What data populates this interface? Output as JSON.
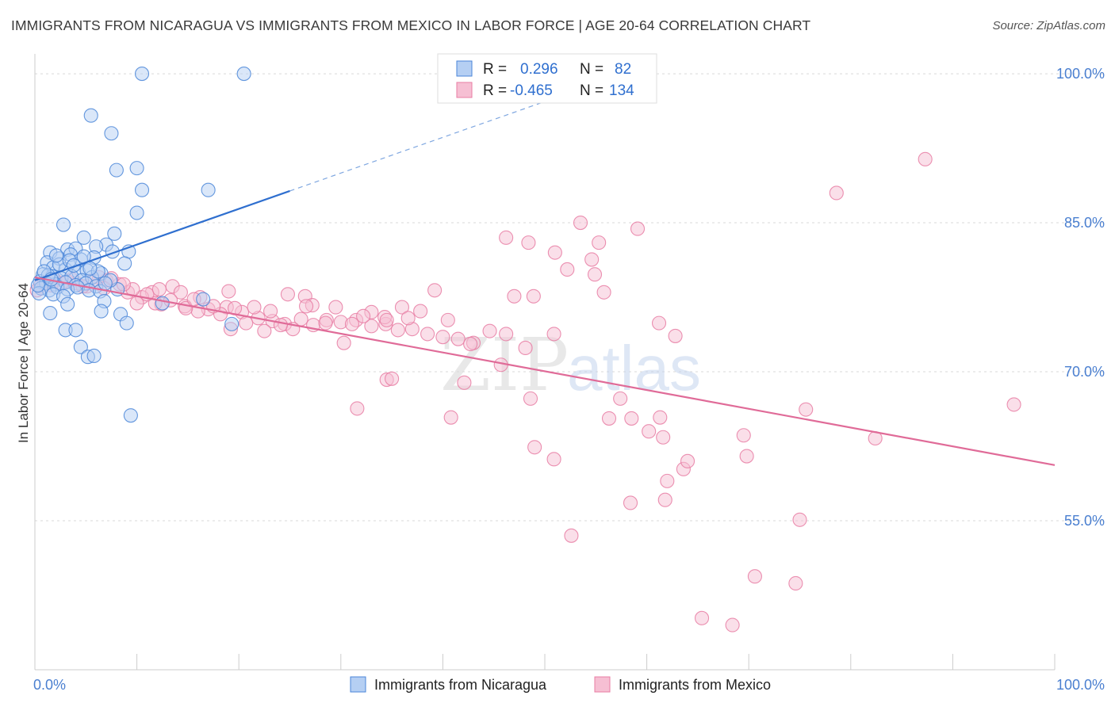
{
  "header": {
    "title": "IMMIGRANTS FROM NICARAGUA VS IMMIGRANTS FROM MEXICO IN LABOR FORCE | AGE 20-64 CORRELATION CHART",
    "source": "Source: ZipAtlas.com"
  },
  "watermark": {
    "zip": "ZIP",
    "atlas": "atlas"
  },
  "chart_data": {
    "type": "scatter",
    "title": "IMMIGRANTS FROM NICARAGUA VS IMMIGRANTS FROM MEXICO IN LABOR FORCE | AGE 20-64 CORRELATION CHART",
    "xlabel": "",
    "ylabel": "In Labor Force | Age 20-64",
    "xlim": [
      0,
      100
    ],
    "ylim": [
      40,
      102
    ],
    "x_tick_labels": {
      "left": "0.0%",
      "right": "100.0%"
    },
    "y_ticks": [
      {
        "value": 100,
        "label": "100.0%"
      },
      {
        "value": 85,
        "label": "85.0%"
      },
      {
        "value": 70,
        "label": "70.0%"
      },
      {
        "value": 55,
        "label": "55.0%"
      }
    ],
    "grid": true,
    "legend_position": "top-center",
    "legend": {
      "rows": [
        {
          "r_label": "R = ",
          "r_value": "0.296",
          "n_label": "N = ",
          "n_value": "82"
        },
        {
          "r_label": "R = ",
          "r_value": "-0.465",
          "n_label": "N = ",
          "n_value": "134"
        }
      ]
    },
    "series": [
      {
        "name": "Immigrants from Nicaragua",
        "color": "#4a86d8",
        "fill": "#b5cff3",
        "trend": {
          "x0": 0,
          "y0": 79.2,
          "x1": 25,
          "y1": 88.2,
          "dashed_to_x": 50,
          "dashed_to_y": 97.2
        },
        "points": [
          [
            10.5,
            100
          ],
          [
            20.5,
            100
          ],
          [
            5.5,
            95.8
          ],
          [
            7.5,
            94
          ],
          [
            8,
            90.3
          ],
          [
            10,
            90.5
          ],
          [
            10.5,
            88.3
          ],
          [
            17,
            88.3
          ],
          [
            10,
            86
          ],
          [
            2.8,
            84.8
          ],
          [
            4.8,
            83.5
          ],
          [
            7.8,
            83.9
          ],
          [
            7,
            82.8
          ],
          [
            6,
            82.6
          ],
          [
            1.5,
            82
          ],
          [
            3.2,
            82.3
          ],
          [
            4,
            82.4
          ],
          [
            5.8,
            81.5
          ],
          [
            1.2,
            81
          ],
          [
            2.4,
            81.4
          ],
          [
            3.5,
            81.8
          ],
          [
            4.5,
            81.3
          ],
          [
            1.8,
            80.5
          ],
          [
            3,
            80.3
          ],
          [
            4.3,
            80
          ],
          [
            5.1,
            80.2
          ],
          [
            6.5,
            79.9
          ],
          [
            0.8,
            79.8
          ],
          [
            1.7,
            79.6
          ],
          [
            2.6,
            79.4
          ],
          [
            3.6,
            79.6
          ],
          [
            4.6,
            79.2
          ],
          [
            5.6,
            79.5
          ],
          [
            0.5,
            79.1
          ],
          [
            1.1,
            78.9
          ],
          [
            2,
            78.8
          ],
          [
            3,
            79
          ],
          [
            4,
            78.7
          ],
          [
            5,
            78.9
          ],
          [
            6,
            78.6
          ],
          [
            0.6,
            78.4
          ],
          [
            1.4,
            78.2
          ],
          [
            2.2,
            78.5
          ],
          [
            3.2,
            78.3
          ],
          [
            4.2,
            78.5
          ],
          [
            5.3,
            78.2
          ],
          [
            6.4,
            78.1
          ],
          [
            0.4,
            77.9
          ],
          [
            1.8,
            77.8
          ],
          [
            2.8,
            77.6
          ],
          [
            6.8,
            77.1
          ],
          [
            3.2,
            76.8
          ],
          [
            1.5,
            75.9
          ],
          [
            6.5,
            76.1
          ],
          [
            8.4,
            75.8
          ],
          [
            9,
            74.9
          ],
          [
            3,
            74.2
          ],
          [
            4,
            74.2
          ],
          [
            4.5,
            72.5
          ],
          [
            5.2,
            71.5
          ],
          [
            5.8,
            71.6
          ],
          [
            9.4,
            65.6
          ],
          [
            16.5,
            77.3
          ],
          [
            12.5,
            76.9
          ],
          [
            19.3,
            74.8
          ],
          [
            8.1,
            78.3
          ],
          [
            7.4,
            79.2
          ],
          [
            6.2,
            80.1
          ],
          [
            1.3,
            79.7
          ],
          [
            2.4,
            80.8
          ],
          [
            7.6,
            82.1
          ],
          [
            5.4,
            80.4
          ],
          [
            3.4,
            81.2
          ],
          [
            4.8,
            81.6
          ],
          [
            6.9,
            78.9
          ],
          [
            0.9,
            80.1
          ],
          [
            1.6,
            79.3
          ],
          [
            2.1,
            81.7
          ],
          [
            3.8,
            80.7
          ],
          [
            0.3,
            78.7
          ],
          [
            9.2,
            82.1
          ],
          [
            8.8,
            80.9
          ]
        ]
      },
      {
        "name": "Immigrants from Mexico",
        "color": "#e87ca3",
        "fill": "#f6bfd3",
        "trend": {
          "x0": 0,
          "y0": 79.5,
          "x1": 100,
          "y1": 60.6
        },
        "points": [
          [
            47.8,
            100
          ],
          [
            87.3,
            91.4
          ],
          [
            78.6,
            88
          ],
          [
            53.5,
            85
          ],
          [
            59.1,
            84.4
          ],
          [
            46.2,
            83.5
          ],
          [
            48.4,
            83
          ],
          [
            55.3,
            83
          ],
          [
            51,
            82
          ],
          [
            54.6,
            81.3
          ],
          [
            52.2,
            80.3
          ],
          [
            54.9,
            79.8
          ],
          [
            39.2,
            78.2
          ],
          [
            55.8,
            78
          ],
          [
            47,
            77.6
          ],
          [
            26.5,
            77.6
          ],
          [
            13.5,
            78.6
          ],
          [
            14.3,
            78
          ],
          [
            11.5,
            78
          ],
          [
            16.2,
            77.5
          ],
          [
            19,
            78.1
          ],
          [
            24.8,
            77.8
          ],
          [
            10.5,
            77.5
          ],
          [
            9.1,
            78
          ],
          [
            8.3,
            78.8
          ],
          [
            7,
            79.2
          ],
          [
            6.3,
            79.5
          ],
          [
            5.1,
            78.6
          ],
          [
            4.1,
            78.9
          ],
          [
            3.2,
            79.1
          ],
          [
            2,
            79.2
          ],
          [
            1.1,
            79
          ],
          [
            0.5,
            78.6
          ],
          [
            0.2,
            78.2
          ],
          [
            10,
            76.9
          ],
          [
            12.4,
            76.8
          ],
          [
            14.7,
            76.6
          ],
          [
            17,
            76.3
          ],
          [
            18.8,
            76.5
          ],
          [
            20.3,
            76
          ],
          [
            21.9,
            75.4
          ],
          [
            23.3,
            75.1
          ],
          [
            24.5,
            74.8
          ],
          [
            26.1,
            75.3
          ],
          [
            27.3,
            74.7
          ],
          [
            28.6,
            75.2
          ],
          [
            30,
            75
          ],
          [
            31.5,
            75.2
          ],
          [
            33,
            74.6
          ],
          [
            34.4,
            74.8
          ],
          [
            35.6,
            74.2
          ],
          [
            37,
            74.3
          ],
          [
            38.5,
            73.8
          ],
          [
            40,
            73.5
          ],
          [
            41.5,
            73.3
          ],
          [
            43,
            72.9
          ],
          [
            44.6,
            74.1
          ],
          [
            46.2,
            73.8
          ],
          [
            48.1,
            72.4
          ],
          [
            50.9,
            73.8
          ],
          [
            37.8,
            76.1
          ],
          [
            36,
            76.5
          ],
          [
            34.3,
            75.5
          ],
          [
            33,
            76
          ],
          [
            28.5,
            74.9
          ],
          [
            25.3,
            74.3
          ],
          [
            22.5,
            74.1
          ],
          [
            19.2,
            74.3
          ],
          [
            16,
            76.1
          ],
          [
            14.8,
            76.4
          ],
          [
            13.3,
            77.2
          ],
          [
            11.8,
            76.9
          ],
          [
            11,
            77.8
          ],
          [
            9.6,
            78.3
          ],
          [
            8.7,
            78.8
          ],
          [
            7.5,
            79.4
          ],
          [
            6.8,
            78.4
          ],
          [
            5.7,
            79.2
          ],
          [
            4.7,
            78.6
          ],
          [
            3.6,
            79.3
          ],
          [
            2.6,
            78.9
          ],
          [
            1.6,
            78.7
          ],
          [
            0.9,
            78.9
          ],
          [
            32.2,
            75.6
          ],
          [
            30.3,
            72.9
          ],
          [
            31.1,
            74.8
          ],
          [
            29.5,
            76.5
          ],
          [
            27.2,
            76.7
          ],
          [
            26.6,
            76.6
          ],
          [
            24.1,
            74.7
          ],
          [
            23.1,
            76.1
          ],
          [
            21.5,
            76.5
          ],
          [
            20.7,
            74.9
          ],
          [
            19.6,
            76.4
          ],
          [
            18.2,
            75.8
          ],
          [
            17.5,
            76.6
          ],
          [
            15.6,
            77.3
          ],
          [
            12.2,
            78.3
          ],
          [
            34.5,
            75.2
          ],
          [
            36.6,
            75.4
          ],
          [
            40.5,
            75.2
          ],
          [
            42.7,
            72.8
          ],
          [
            48.6,
            67.3
          ],
          [
            34.5,
            69.2
          ],
          [
            35,
            69.3
          ],
          [
            42.1,
            68.9
          ],
          [
            45.7,
            70.7
          ],
          [
            49,
            62.4
          ],
          [
            50.9,
            61.2
          ],
          [
            61.2,
            74.9
          ],
          [
            62.8,
            73.6
          ],
          [
            48.9,
            77.6
          ],
          [
            56.3,
            65.3
          ],
          [
            58.5,
            65.3
          ],
          [
            57.4,
            67.3
          ],
          [
            61.3,
            65.4
          ],
          [
            60.2,
            64
          ],
          [
            61.6,
            63.4
          ],
          [
            62,
            59
          ],
          [
            69.5,
            63.6
          ],
          [
            58.4,
            56.8
          ],
          [
            63.6,
            60.2
          ],
          [
            69.8,
            61.5
          ],
          [
            61.8,
            57.1
          ],
          [
            75,
            55.1
          ],
          [
            82.4,
            63.3
          ],
          [
            64,
            61
          ],
          [
            52.6,
            53.5
          ],
          [
            65.4,
            45.2
          ],
          [
            70.6,
            49.4
          ],
          [
            68.4,
            44.5
          ],
          [
            74.6,
            48.7
          ],
          [
            75.6,
            66.2
          ],
          [
            96,
            66.7
          ],
          [
            31.6,
            66.3
          ],
          [
            40.8,
            65.4
          ]
        ]
      }
    ]
  },
  "bottom_legend": [
    {
      "label": "Immigrants from Nicaragua",
      "color": "#4a86d8",
      "fill": "#b5cff3"
    },
    {
      "label": "Immigrants from Mexico",
      "color": "#e87ca3",
      "fill": "#f6bfd3"
    }
  ]
}
